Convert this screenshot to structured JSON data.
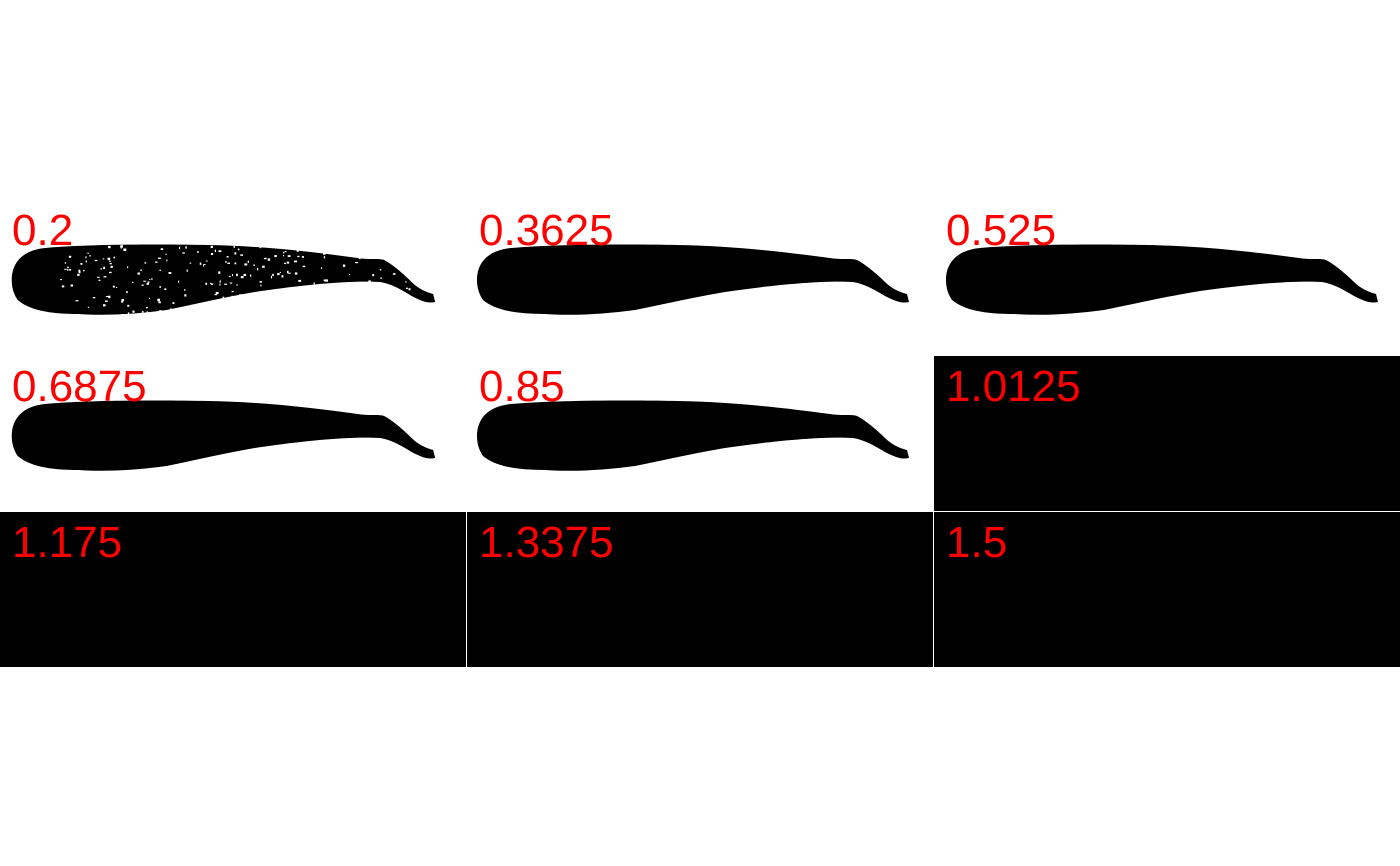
{
  "figure": {
    "panels": [
      {
        "label": "0.2",
        "state": "speckled-silhouette"
      },
      {
        "label": "0.3625",
        "state": "silhouette"
      },
      {
        "label": "0.525",
        "state": "silhouette"
      },
      {
        "label": "0.6875",
        "state": "silhouette"
      },
      {
        "label": "0.85",
        "state": "silhouette"
      },
      {
        "label": "1.0125",
        "state": "all-black"
      },
      {
        "label": "1.175",
        "state": "all-black"
      },
      {
        "label": "1.3375",
        "state": "all-black"
      },
      {
        "label": "1.5",
        "state": "all-black"
      }
    ],
    "label_color": "#ff0000",
    "foreground_color": "#000000",
    "background_color": "#ffffff"
  }
}
